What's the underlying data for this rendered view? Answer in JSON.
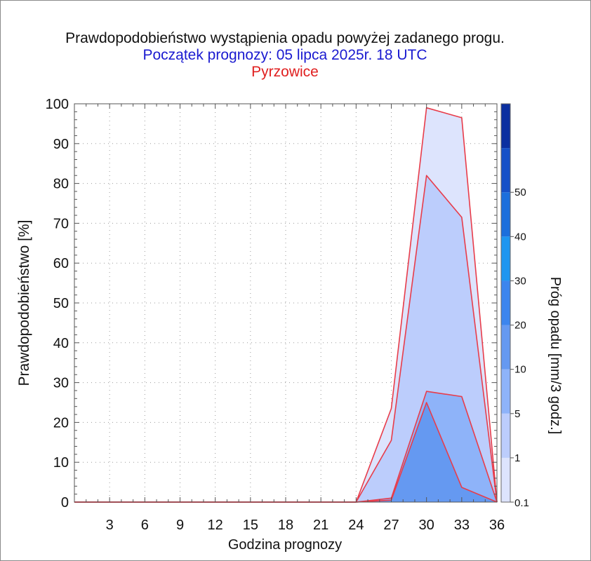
{
  "chart_data": {
    "type": "area",
    "title": "Prawdopodobieństwo wystąpienia opadu powyżej zadanego progu.",
    "subtitle": "Początek prognozy: 05 lipca 2025r. 18 UTC",
    "location": "Pyrzowice",
    "xlabel": "Godzina prognozy",
    "ylabel": "Prawdopodobieństwo [%]",
    "colorbar_label": "Próg opadu [mm/3 godz.]",
    "xlim": [
      0,
      36
    ],
    "ylim": [
      0,
      100
    ],
    "x_ticks": [
      3,
      6,
      9,
      12,
      15,
      18,
      21,
      24,
      27,
      30,
      33,
      36
    ],
    "y_ticks": [
      0,
      10,
      20,
      30,
      40,
      50,
      60,
      70,
      80,
      90,
      100
    ],
    "grid": true,
    "x": [
      0,
      3,
      6,
      9,
      12,
      15,
      18,
      21,
      24,
      27,
      30,
      33,
      36
    ],
    "series": [
      {
        "name": "0.1",
        "color": "#dde4fd",
        "values": [
          0,
          0,
          0,
          0,
          0,
          0,
          0,
          0,
          0,
          23.5,
          99,
          96.5,
          0
        ]
      },
      {
        "name": "1",
        "color": "#bccdfc",
        "values": [
          0,
          0,
          0,
          0,
          0,
          0,
          0,
          0,
          0,
          15.5,
          82,
          71.5,
          0
        ]
      },
      {
        "name": "5",
        "color": "#8eb3f9",
        "values": [
          0,
          0,
          0,
          0,
          0,
          0,
          0,
          0,
          0,
          1,
          27.8,
          26.5,
          0
        ]
      },
      {
        "name": "10",
        "color": "#6599f1",
        "values": [
          0,
          0,
          0,
          0,
          0,
          0,
          0,
          0,
          0,
          0.5,
          25,
          3.7,
          0
        ]
      }
    ],
    "series_line_color": "#e83c4a",
    "colorbar": {
      "labels": [
        "0.1",
        "1",
        "5",
        "10",
        "20",
        "30",
        "40",
        "50"
      ],
      "colors": [
        "#dde4fd",
        "#bccdfc",
        "#8eb3f9",
        "#6599f1",
        "#3c85ee",
        "#1e96f0",
        "#1c6fdc",
        "#1651c8",
        "#0b2fa0"
      ]
    }
  }
}
